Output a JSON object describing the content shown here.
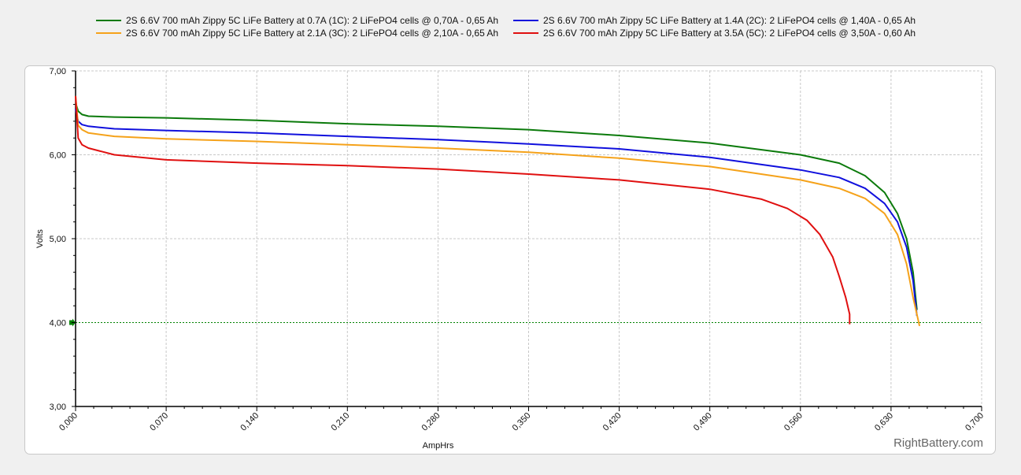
{
  "chart_data": {
    "type": "line",
    "title": "",
    "xlabel": "AmpHrs",
    "ylabel": "Volts",
    "xlim": [
      0,
      0.7
    ],
    "ylim": [
      3.0,
      7.0
    ],
    "x_ticks": [
      "0,000",
      "0,070",
      "0,140",
      "0,210",
      "0,280",
      "0,350",
      "0,420",
      "0,490",
      "0,560",
      "0,630",
      "0,700"
    ],
    "y_ticks": [
      "3,00",
      "4,00",
      "5,00",
      "6,00",
      "7,00"
    ],
    "grid": true,
    "legend_position": "top",
    "cutoff_line": {
      "value": 4.0,
      "color": "#008000",
      "style": "dashed"
    },
    "watermark": "RightBattery.com",
    "series": [
      {
        "name": "2S 6.6V 700 mAh Zippy 5C LiFe Battery at 0.7A (1C): 2 LiFePO4 cells @ 0,70A - 0,65 Ah",
        "color": "#0b7a0b",
        "x": [
          0,
          0.002,
          0.005,
          0.01,
          0.03,
          0.07,
          0.14,
          0.21,
          0.28,
          0.35,
          0.42,
          0.49,
          0.56,
          0.59,
          0.61,
          0.625,
          0.635,
          0.642,
          0.647,
          0.65
        ],
        "y": [
          6.62,
          6.52,
          6.48,
          6.46,
          6.45,
          6.44,
          6.41,
          6.37,
          6.34,
          6.3,
          6.23,
          6.14,
          6.0,
          5.9,
          5.75,
          5.55,
          5.3,
          5.0,
          4.6,
          4.15
        ]
      },
      {
        "name": "2S 6.6V 700 mAh Zippy 5C LiFe Battery at 1.4A (2C): 2 LiFePO4 cells @ 1,40A - 0,65 Ah",
        "color": "#1010dd",
        "x": [
          0,
          0.002,
          0.005,
          0.01,
          0.03,
          0.07,
          0.14,
          0.21,
          0.28,
          0.35,
          0.42,
          0.49,
          0.56,
          0.59,
          0.61,
          0.625,
          0.635,
          0.642,
          0.647,
          0.65
        ],
        "y": [
          6.55,
          6.4,
          6.36,
          6.34,
          6.31,
          6.29,
          6.26,
          6.22,
          6.18,
          6.13,
          6.07,
          5.97,
          5.82,
          5.73,
          5.6,
          5.42,
          5.2,
          4.9,
          4.5,
          4.08
        ]
      },
      {
        "name": "2S 6.6V 700 mAh Zippy 5C LiFe Battery at 2.1A (3C): 2 LiFePO4 cells @ 2,10A - 0,65 Ah",
        "color": "#f5a21a",
        "x": [
          0,
          0.002,
          0.005,
          0.01,
          0.03,
          0.07,
          0.14,
          0.21,
          0.28,
          0.35,
          0.42,
          0.49,
          0.56,
          0.59,
          0.61,
          0.625,
          0.635,
          0.642,
          0.647,
          0.652
        ],
        "y": [
          6.7,
          6.35,
          6.3,
          6.26,
          6.22,
          6.19,
          6.16,
          6.12,
          6.08,
          6.03,
          5.96,
          5.86,
          5.7,
          5.6,
          5.48,
          5.3,
          5.05,
          4.7,
          4.3,
          3.96
        ]
      },
      {
        "name": "2S 6.6V 700 mAh Zippy 5C LiFe Battery at 3.5A (5C): 2 LiFePO4 cells @ 3,50A - 0,60 Ah",
        "color": "#e01010",
        "x": [
          0,
          0.002,
          0.005,
          0.01,
          0.03,
          0.07,
          0.14,
          0.21,
          0.28,
          0.35,
          0.42,
          0.49,
          0.53,
          0.55,
          0.565,
          0.575,
          0.585,
          0.59,
          0.595,
          0.598,
          0.598
        ],
        "y": [
          6.7,
          6.2,
          6.12,
          6.08,
          6.0,
          5.94,
          5.9,
          5.87,
          5.83,
          5.77,
          5.7,
          5.59,
          5.47,
          5.36,
          5.22,
          5.05,
          4.78,
          4.55,
          4.3,
          4.1,
          3.98
        ]
      }
    ]
  }
}
